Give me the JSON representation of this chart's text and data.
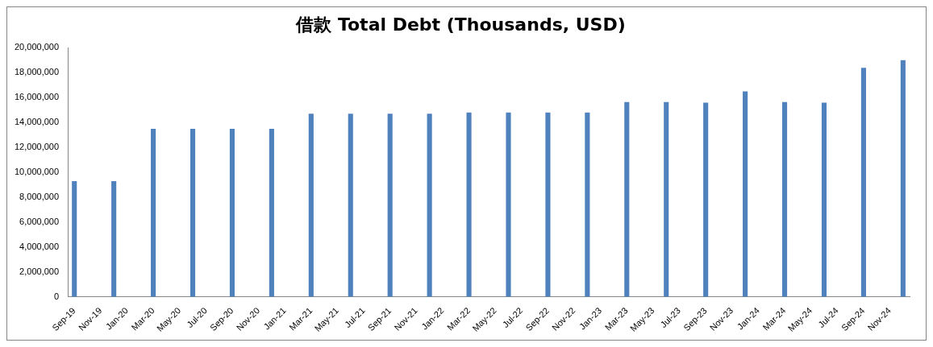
{
  "chart_data": {
    "type": "bar",
    "title": "借款 Total Debt (Thousands, USD)",
    "categories": [
      "Sep-19",
      null,
      "Nov-19",
      null,
      "Jan-20",
      null,
      "Mar-20",
      null,
      "May-20",
      null,
      "Jul-20",
      null,
      "Sep-20",
      null,
      "Nov-20",
      null,
      "Jan-21",
      null,
      "Mar-21",
      null,
      "May-21",
      null,
      "Jul-21",
      null,
      "Sep-21",
      null,
      "Nov-21",
      null,
      "Jan-22",
      null,
      "Mar-22",
      null,
      "May-22",
      null,
      "Jul-22",
      null,
      "Sep-22",
      null,
      "Nov-22",
      null,
      "Jan-23",
      null,
      "Mar-23",
      null,
      "May-23",
      null,
      "Jul-23",
      null,
      "Sep-23",
      null,
      "Nov-23",
      null,
      "Jan-24",
      null,
      "Mar-24",
      null,
      "May-24",
      null,
      "Jul-24",
      null,
      "Sep-24",
      null,
      "Nov-24",
      null
    ],
    "values": [
      9300000,
      null,
      null,
      9300000,
      null,
      null,
      13500000,
      null,
      null,
      13500000,
      null,
      null,
      13500000,
      null,
      null,
      13500000,
      null,
      null,
      14700000,
      null,
      null,
      14700000,
      null,
      null,
      14700000,
      null,
      null,
      14700000,
      null,
      null,
      14800000,
      null,
      null,
      14800000,
      null,
      null,
      14800000,
      null,
      null,
      14800000,
      null,
      null,
      15650000,
      null,
      null,
      15650000,
      null,
      null,
      15600000,
      null,
      null,
      16500000,
      null,
      null,
      15650000,
      null,
      null,
      15600000,
      null,
      null,
      18400000,
      null,
      null,
      19000000
    ],
    "color": "#4f81bd",
    "ylim": [
      0,
      20000000
    ],
    "yticks": [
      {
        "value": 0,
        "label": "0"
      },
      {
        "value": 2000000,
        "label": "2,000,000"
      },
      {
        "value": 4000000,
        "label": "4,000,000"
      },
      {
        "value": 6000000,
        "label": "6,000,000"
      },
      {
        "value": 8000000,
        "label": "8,000,000"
      },
      {
        "value": 10000000,
        "label": "10,000,000"
      },
      {
        "value": 12000000,
        "label": "12,000,000"
      },
      {
        "value": 14000000,
        "label": "14,000,000"
      },
      {
        "value": 16000000,
        "label": "16,000,000"
      },
      {
        "value": 18000000,
        "label": "18,000,000"
      },
      {
        "value": 20000000,
        "label": "20,000,000"
      }
    ],
    "grid": false,
    "legend": false
  }
}
